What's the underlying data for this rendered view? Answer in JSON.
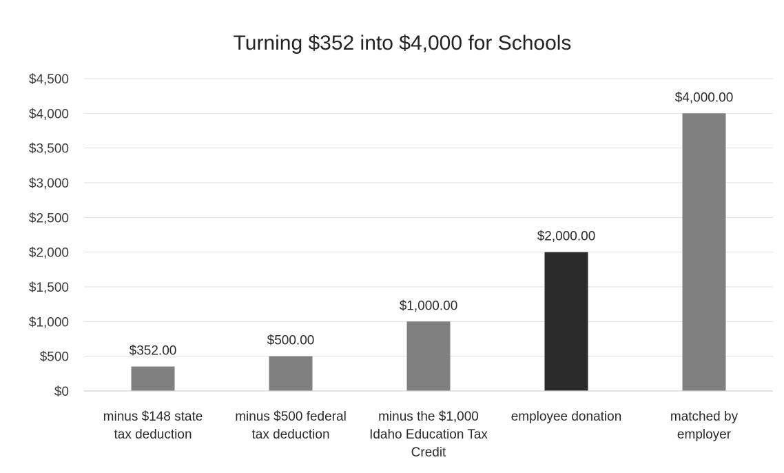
{
  "chart_data": {
    "type": "bar",
    "title": "Turning $352 into $4,000 for Schools",
    "xlabel": "",
    "ylabel": "",
    "ylim": [
      0,
      4500
    ],
    "yticks": [
      0,
      500,
      1000,
      1500,
      2000,
      2500,
      3000,
      3500,
      4000,
      4500
    ],
    "ytick_labels": [
      "$0",
      "$500",
      "$1,000",
      "$1,500",
      "$2,000",
      "$2,500",
      "$3,000",
      "$3,500",
      "$4,000",
      "$4,500"
    ],
    "categories": [
      [
        "minus $148 state",
        "tax deduction"
      ],
      [
        "minus $500 federal",
        "tax deduction"
      ],
      [
        "minus the $1,000",
        "Idaho Education Tax",
        "Credit"
      ],
      [
        "employee donation"
      ],
      [
        "matched by",
        "employer"
      ]
    ],
    "values": [
      352,
      500,
      1000,
      2000,
      4000
    ],
    "data_labels": [
      "$352.00",
      "$500.00",
      "$1,000.00",
      "$2,000.00",
      "$4,000.00"
    ],
    "bar_colors": [
      "#808080",
      "#808080",
      "#808080",
      "#2b2b2b",
      "#808080"
    ],
    "grid": true,
    "legend": "none"
  }
}
